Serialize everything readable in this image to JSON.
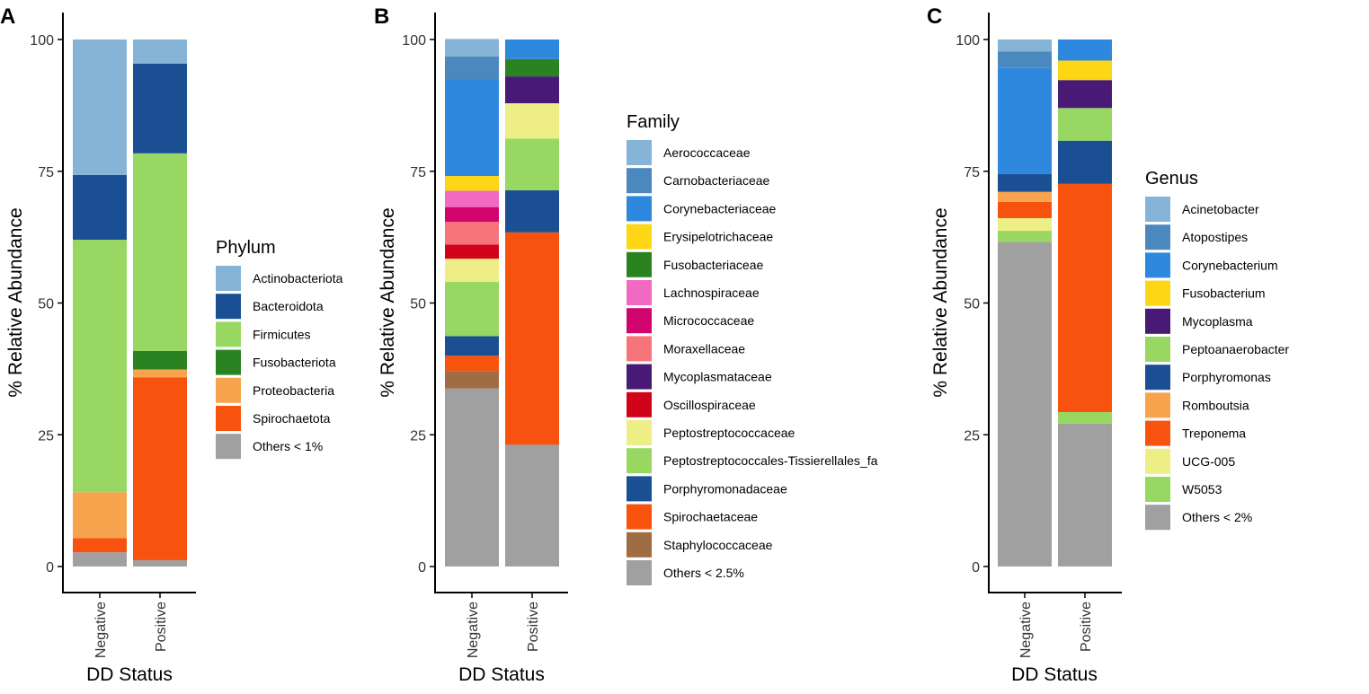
{
  "chart_data": [
    {
      "type": "bar",
      "stacked": true,
      "panel": "A",
      "title": "",
      "xlabel": "DD Status",
      "ylabel": "% Relative Abundance",
      "ylim": [
        0,
        100
      ],
      "yticks": [
        "0",
        "25",
        "50",
        "75",
        "100"
      ],
      "categories": [
        "Negative",
        "Positive"
      ],
      "legend_title": "Phylum",
      "series": [
        {
          "name": "Actinobacteriota",
          "color": "#86B4D6",
          "values": [
            25.7,
            4.6
          ]
        },
        {
          "name": "Bacteroidota",
          "color": "#1A4F94",
          "values": [
            12.3,
            17.0
          ]
        },
        {
          "name": "Firmicutes",
          "color": "#98D762",
          "values": [
            47.9,
            37.5
          ]
        },
        {
          "name": "Fusobacteriota",
          "color": "#2A8320",
          "values": [
            0.0,
            3.5
          ]
        },
        {
          "name": "Proteobacteria",
          "color": "#F8A34D",
          "values": [
            8.7,
            1.5
          ]
        },
        {
          "name": "Spirochaetota",
          "color": "#F8530E",
          "values": [
            2.7,
            34.7
          ]
        },
        {
          "name": "Others < 1%",
          "color": "#A0A0A0",
          "values": [
            2.7,
            1.2
          ]
        }
      ]
    },
    {
      "type": "bar",
      "stacked": true,
      "panel": "B",
      "title": "",
      "xlabel": "DD Status",
      "ylabel": "% Relative Abundance",
      "ylim": [
        0,
        100
      ],
      "yticks": [
        "0",
        "25",
        "50",
        "75",
        "100"
      ],
      "categories": [
        "Negative",
        "Positive"
      ],
      "legend_title": "Family",
      "series": [
        {
          "name": "Aerococcaceae",
          "color": "#86B4D6",
          "values": [
            3.3,
            0.0
          ]
        },
        {
          "name": "Carnobacteriaceae",
          "color": "#4A88BE",
          "values": [
            4.3,
            0.0
          ]
        },
        {
          "name": "Corynebacteriaceae",
          "color": "#2E88DD",
          "values": [
            18.4,
            3.7
          ]
        },
        {
          "name": "Erysipelotrichaceae",
          "color": "#FDD616",
          "values": [
            2.8,
            0.0
          ]
        },
        {
          "name": "Fusobacteriaceae",
          "color": "#2A8320",
          "values": [
            0.0,
            3.3
          ]
        },
        {
          "name": "Lachnospiraceae",
          "color": "#F169C0",
          "values": [
            3.1,
            0.0
          ]
        },
        {
          "name": "Micrococcaceae",
          "color": "#D1046F",
          "values": [
            2.8,
            0.0
          ]
        },
        {
          "name": "Moraxellaceae",
          "color": "#F6757A",
          "values": [
            4.3,
            0.0
          ]
        },
        {
          "name": "Mycoplasmataceae",
          "color": "#481A75",
          "values": [
            0.0,
            5.1
          ]
        },
        {
          "name": "Oscillospiraceae",
          "color": "#D1031A",
          "values": [
            2.7,
            0.0
          ]
        },
        {
          "name": "Peptostreptococcaceae",
          "color": "#EDEE85",
          "values": [
            4.4,
            6.7
          ]
        },
        {
          "name": "Peptostreptococcales-Tissierellales_fa",
          "color": "#98D762",
          "values": [
            10.3,
            9.8
          ]
        },
        {
          "name": "Porphyromonadaceae",
          "color": "#1A4F94",
          "values": [
            3.7,
            8.0
          ]
        },
        {
          "name": "Spirochaetaceae",
          "color": "#F8530E",
          "values": [
            2.9,
            40.3
          ]
        },
        {
          "name": "Staphylococcaceae",
          "color": "#A06D43",
          "values": [
            3.3,
            0.0
          ]
        },
        {
          "name": "Others < 2.5%",
          "color": "#A0A0A0",
          "values": [
            33.8,
            23.1
          ]
        }
      ]
    },
    {
      "type": "bar",
      "stacked": true,
      "panel": "C",
      "title": "",
      "xlabel": "DD Status",
      "ylabel": "% Relative Abundance",
      "ylim": [
        0,
        100
      ],
      "yticks": [
        "0",
        "25",
        "50",
        "75",
        "100"
      ],
      "categories": [
        "Negative",
        "Positive"
      ],
      "legend_title": "Genus",
      "series": [
        {
          "name": "Acinetobacter",
          "color": "#86B4D6",
          "values": [
            2.3,
            0.0
          ]
        },
        {
          "name": "Atopostipes",
          "color": "#4A88BE",
          "values": [
            3.1,
            0.0
          ]
        },
        {
          "name": "Corynebacterium",
          "color": "#2E88DD",
          "values": [
            20.1,
            4.0
          ]
        },
        {
          "name": "Fusobacterium",
          "color": "#FDD616",
          "values": [
            0.0,
            3.7
          ]
        },
        {
          "name": "Mycoplasma",
          "color": "#481A75",
          "values": [
            0.0,
            5.3
          ]
        },
        {
          "name": "Peptoanaerobacter",
          "color": "#98D762",
          "values": [
            0.0,
            6.2
          ]
        },
        {
          "name": "Porphyromonas",
          "color": "#1A4F94",
          "values": [
            3.4,
            8.2
          ]
        },
        {
          "name": "Romboutsia",
          "color": "#F8A34D",
          "values": [
            1.9,
            0.0
          ]
        },
        {
          "name": "Treponema",
          "color": "#F8530E",
          "values": [
            3.1,
            43.3
          ]
        },
        {
          "name": "UCG-005",
          "color": "#EDEE85",
          "values": [
            2.4,
            0.0
          ]
        },
        {
          "name": "W5053",
          "color": "#98D762",
          "values": [
            2.1,
            2.2
          ]
        },
        {
          "name": "Others < 2%",
          "color": "#A0A0A0",
          "values": [
            61.6,
            27.1
          ]
        }
      ]
    }
  ]
}
